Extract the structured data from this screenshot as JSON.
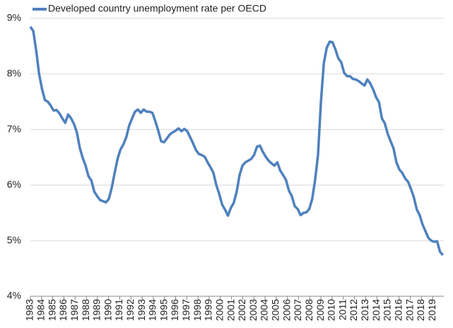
{
  "chart_data": {
    "type": "line",
    "x": [
      1983.0,
      1983.26,
      1983.52,
      1983.78,
      1984.04,
      1984.3,
      1984.56,
      1984.82,
      1985.08,
      1985.34,
      1985.6,
      1985.86,
      1986.12,
      1986.38,
      1986.64,
      1986.9,
      1987.16,
      1987.42,
      1987.68,
      1987.94,
      1988.2,
      1988.46,
      1988.72,
      1988.98,
      1989.24,
      1989.5,
      1989.76,
      1990.02,
      1990.28,
      1990.54,
      1990.8,
      1991.06,
      1991.32,
      1991.58,
      1991.84,
      1992.1,
      1992.36,
      1992.62,
      1992.88,
      1993.14,
      1993.4,
      1993.66,
      1993.92,
      1994.18,
      1994.44,
      1994.7,
      1994.96,
      1995.22,
      1995.48,
      1995.74,
      1996.0,
      1996.26,
      1996.52,
      1996.78,
      1997.04,
      1997.3,
      1997.56,
      1997.82,
      1998.08,
      1998.34,
      1998.6,
      1998.86,
      1999.12,
      1999.38,
      1999.64,
      1999.9,
      2000.16,
      2000.42,
      2000.68,
      2000.94,
      2001.2,
      2001.46,
      2001.72,
      2001.98,
      2002.24,
      2002.5,
      2002.76,
      2003.02,
      2003.28,
      2003.54,
      2003.8,
      2004.06,
      2004.32,
      2004.58,
      2004.84,
      2005.1,
      2005.36,
      2005.62,
      2005.88,
      2006.14,
      2006.4,
      2006.66,
      2006.92,
      2007.18,
      2007.44,
      2007.7,
      2007.96,
      2008.22,
      2008.48,
      2008.74,
      2009.0,
      2009.26,
      2009.52,
      2009.78,
      2010.04,
      2010.3,
      2010.56,
      2010.82,
      2011.08,
      2011.34,
      2011.6,
      2011.86,
      2012.12,
      2012.38,
      2012.64,
      2012.9,
      2013.16,
      2013.42,
      2013.68,
      2013.94,
      2014.2,
      2014.46,
      2014.72,
      2014.98,
      2015.24,
      2015.5,
      2015.76,
      2016.02,
      2016.28,
      2016.54,
      2016.8,
      2017.06,
      2017.32,
      2017.58,
      2017.84,
      2018.1,
      2018.36,
      2018.62,
      2018.88,
      2019.14,
      2019.4,
      2019.66,
      2019.92
    ],
    "series": [
      {
        "name": "Developed country unemployment rate per OECD",
        "color": "#4f81bd",
        "values": [
          8.85,
          8.77,
          8.42,
          8.0,
          7.73,
          7.53,
          7.5,
          7.43,
          7.34,
          7.35,
          7.29,
          7.2,
          7.12,
          7.27,
          7.2,
          7.1,
          6.95,
          6.67,
          6.49,
          6.35,
          6.16,
          6.08,
          5.88,
          5.8,
          5.73,
          5.71,
          5.69,
          5.75,
          5.95,
          6.22,
          6.47,
          6.64,
          6.73,
          6.86,
          7.07,
          7.2,
          7.32,
          7.36,
          7.3,
          7.36,
          7.32,
          7.32,
          7.3,
          7.15,
          6.98,
          6.79,
          6.77,
          6.84,
          6.91,
          6.95,
          6.98,
          7.02,
          6.97,
          7.01,
          6.97,
          6.86,
          6.75,
          6.63,
          6.56,
          6.54,
          6.51,
          6.41,
          6.32,
          6.22,
          6.0,
          5.84,
          5.65,
          5.56,
          5.45,
          5.59,
          5.68,
          5.88,
          6.18,
          6.35,
          6.41,
          6.44,
          6.47,
          6.54,
          6.69,
          6.71,
          6.6,
          6.51,
          6.44,
          6.39,
          6.35,
          6.41,
          6.26,
          6.18,
          6.09,
          5.9,
          5.8,
          5.62,
          5.57,
          5.46,
          5.5,
          5.51,
          5.57,
          5.75,
          6.09,
          6.54,
          7.49,
          8.19,
          8.47,
          8.58,
          8.57,
          8.44,
          8.28,
          8.21,
          8.02,
          7.96,
          7.96,
          7.91,
          7.9,
          7.87,
          7.83,
          7.79,
          7.9,
          7.83,
          7.72,
          7.58,
          7.49,
          7.2,
          7.11,
          6.92,
          6.79,
          6.66,
          6.41,
          6.28,
          6.22,
          6.12,
          6.06,
          5.93,
          5.78,
          5.56,
          5.46,
          5.29,
          5.17,
          5.05,
          5.0,
          4.98,
          4.99,
          4.8,
          4.74
        ]
      }
    ],
    "xlim": [
      1983,
      2020
    ],
    "xticks": [
      1983,
      1984,
      1985,
      1986,
      1987,
      1988,
      1989,
      1990,
      1991,
      1992,
      1993,
      1994,
      1995,
      1996,
      1997,
      1998,
      1999,
      2000,
      2001,
      2002,
      2003,
      2004,
      2005,
      2006,
      2007,
      2008,
      2009,
      2010,
      2011,
      2012,
      2013,
      2014,
      2015,
      2016,
      2017,
      2018,
      2019
    ],
    "ylim": [
      4,
      9
    ],
    "yticks": [
      {
        "value": 4,
        "label": "4%"
      },
      {
        "value": 5,
        "label": "5%"
      },
      {
        "value": 6,
        "label": "6%"
      },
      {
        "value": 7,
        "label": "7%"
      },
      {
        "value": 8,
        "label": "8%"
      },
      {
        "value": 9,
        "label": "9%"
      }
    ],
    "grid": true,
    "legend": "top-left"
  }
}
